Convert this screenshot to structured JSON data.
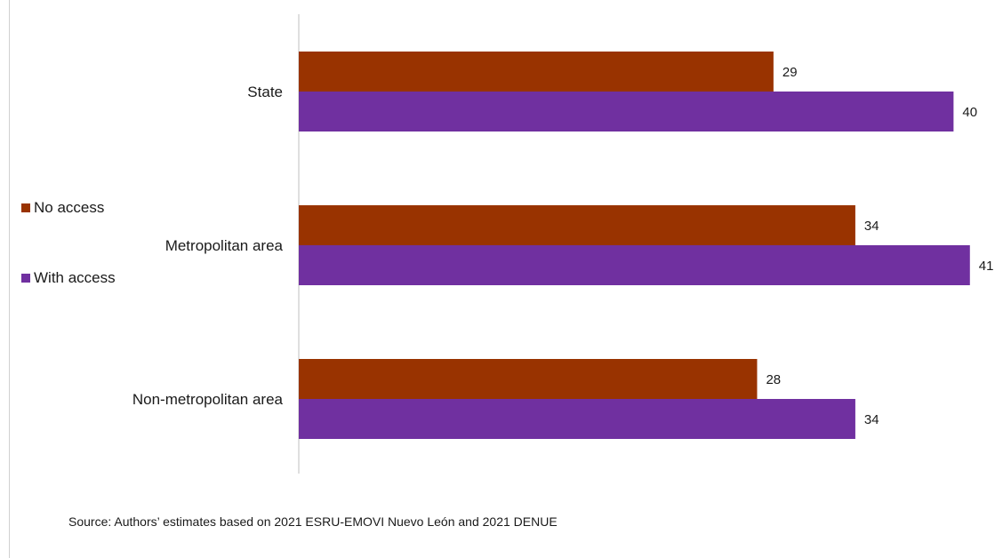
{
  "chart_data": {
    "type": "bar",
    "orientation": "horizontal",
    "categories": [
      "State",
      "Metropolitan area",
      "Non-metropolitan area"
    ],
    "series": [
      {
        "name": "No access",
        "color": "#993300",
        "values": [
          29,
          34,
          28
        ]
      },
      {
        "name": "With access",
        "color": "#7030a0",
        "values": [
          40,
          41,
          34
        ]
      }
    ],
    "xlim": [
      0,
      41.5
    ],
    "grid": false,
    "legend_position": "left"
  },
  "legend": {
    "items": [
      {
        "label": "No access",
        "color": "#993300"
      },
      {
        "label": "With access",
        "color": "#7030a0"
      }
    ]
  },
  "source": "Source: Authors’ estimates based on 2021 ESRU-EMOVI Nuevo León and 2021 DENUE"
}
